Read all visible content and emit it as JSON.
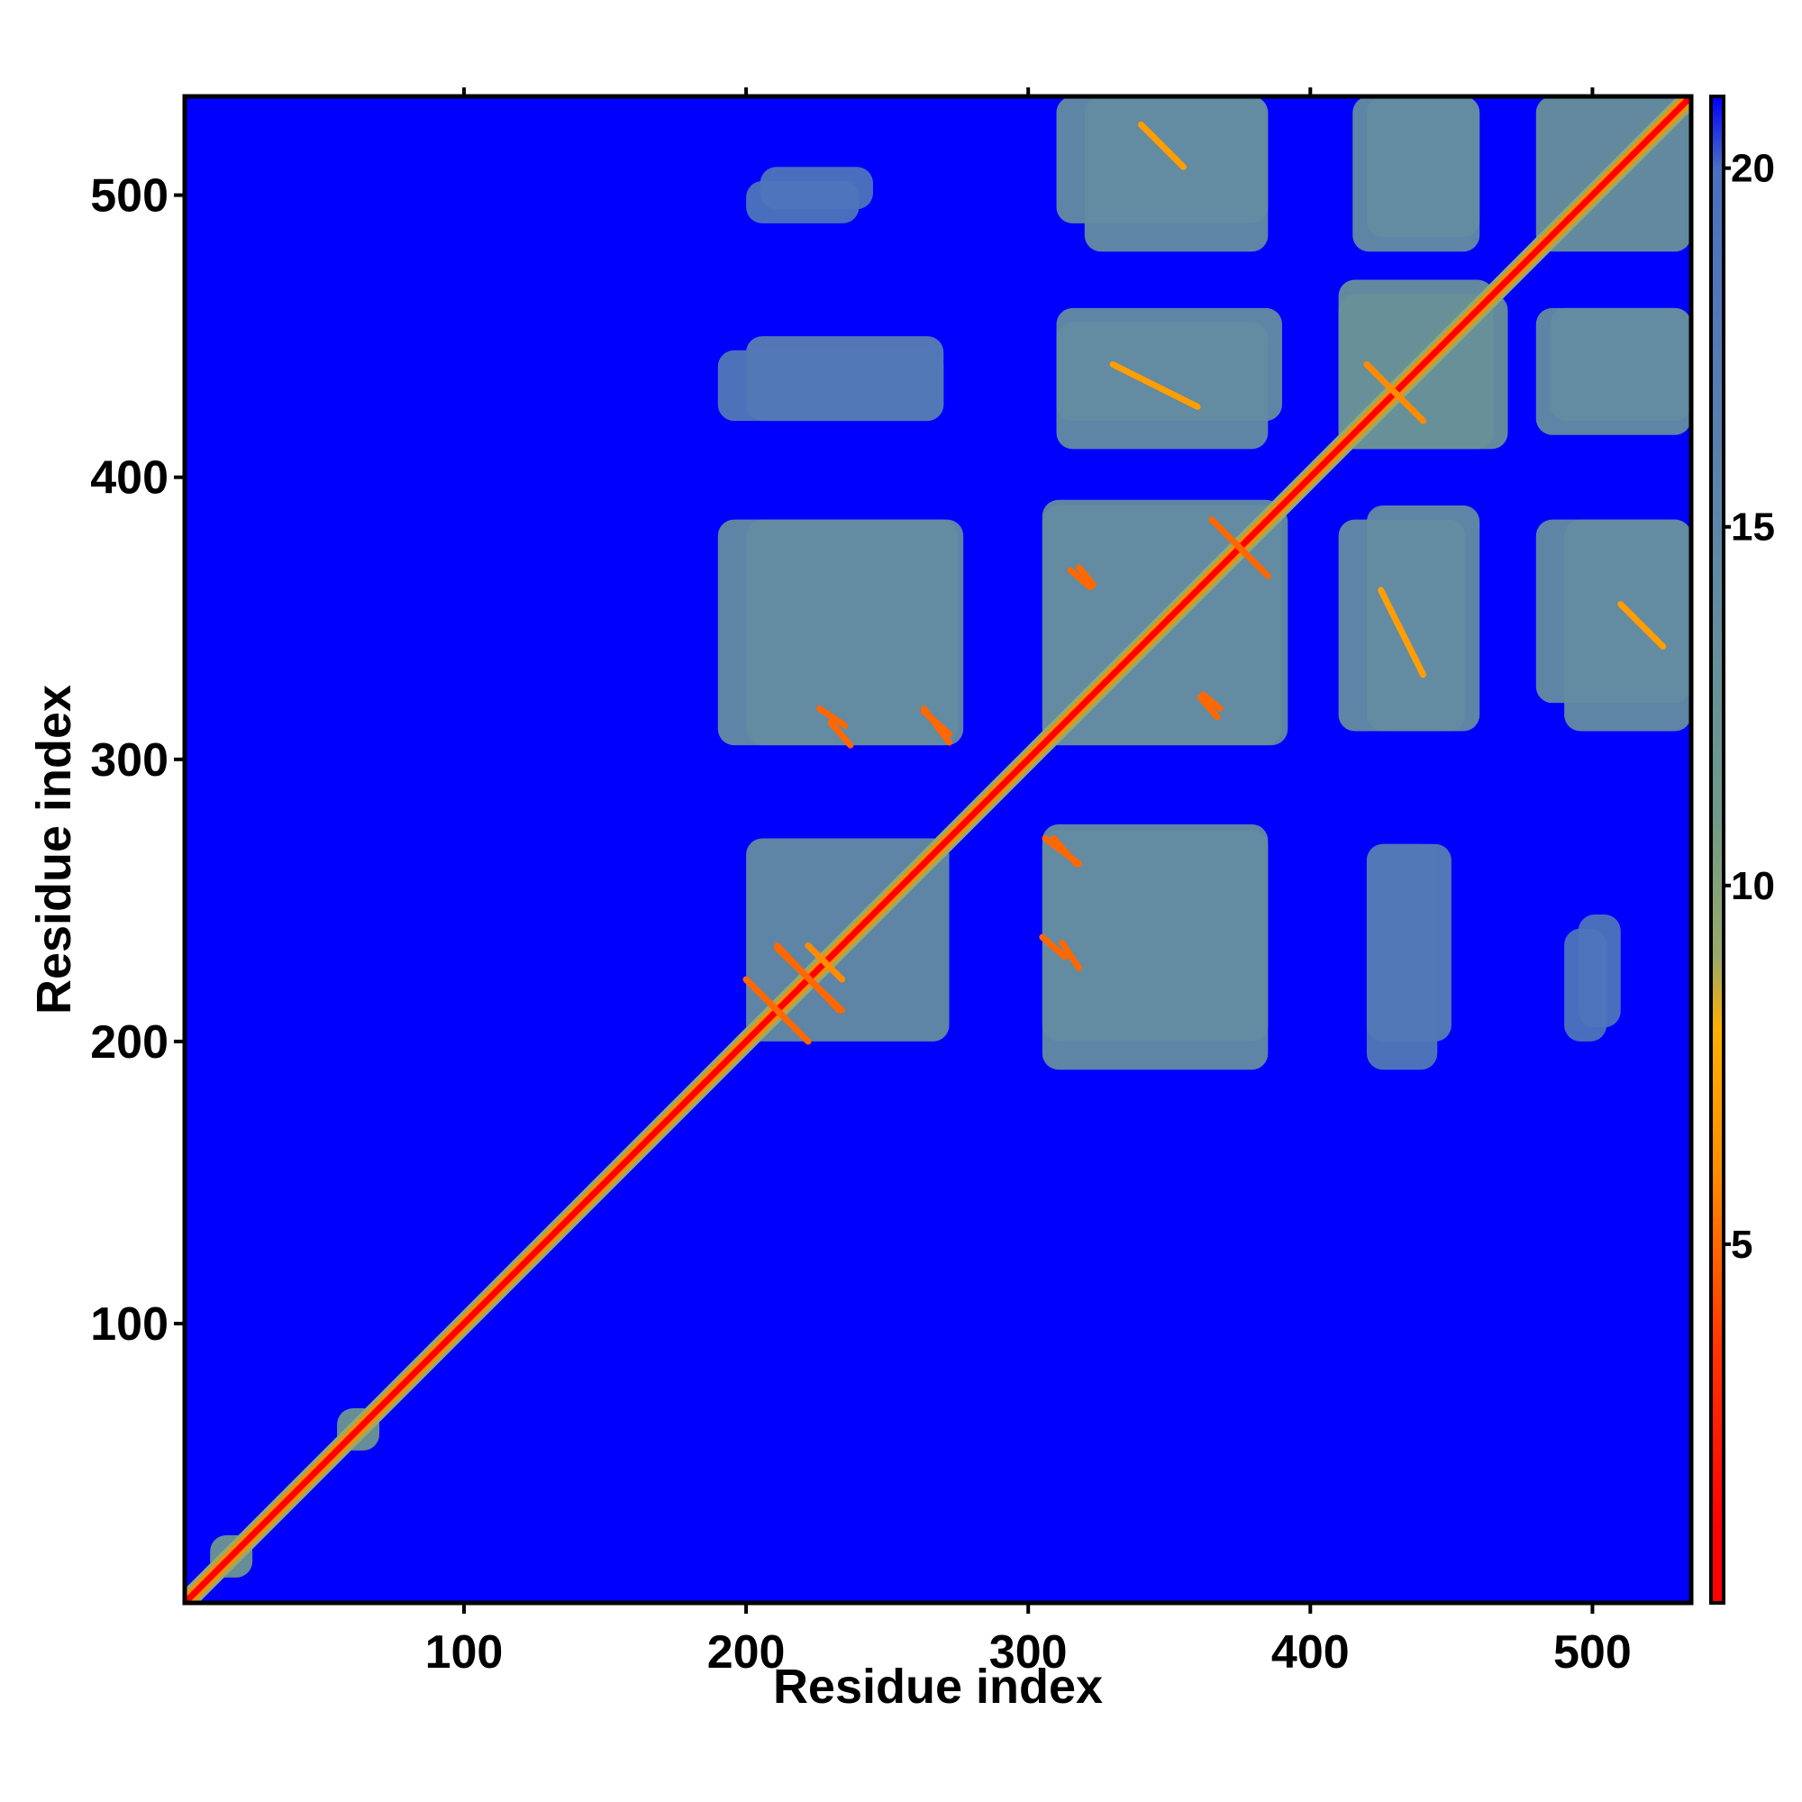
{
  "chart_data": {
    "type": "heatmap",
    "title": "",
    "xlabel": "Residue index",
    "ylabel": "Residue index",
    "xlim": [
      1,
      535
    ],
    "ylim": [
      1,
      535
    ],
    "x_ticks": [
      100,
      200,
      300,
      400,
      500
    ],
    "y_ticks": [
      100,
      200,
      300,
      400,
      500
    ],
    "colorbar": {
      "range": [
        0,
        21
      ],
      "ticks": [
        5,
        10,
        15,
        20
      ],
      "stops": [
        {
          "value": 1,
          "color": "#ff0000"
        },
        {
          "value": 3.5,
          "color": "#ff3300"
        },
        {
          "value": 6,
          "color": "#ff8c00"
        },
        {
          "value": 8,
          "color": "#ffb000"
        },
        {
          "value": 9,
          "color": "#9aa96a"
        },
        {
          "value": 11,
          "color": "#6f9a8a"
        },
        {
          "value": 15,
          "color": "#5f86a8"
        },
        {
          "value": 20,
          "color": "#4a6fc0"
        },
        {
          "value": 21,
          "color": "#0000ff"
        }
      ]
    },
    "background": {
      "value": 21,
      "color": "#0000ff"
    },
    "diagonal": {
      "from": 1,
      "to": 535,
      "value": 1
    },
    "contact_blocks": [
      {
        "x": [
          200,
          272
        ],
        "y": [
          200,
          272
        ],
        "value": 14
      },
      {
        "x": [
          305,
          385
        ],
        "y": [
          190,
          275
        ],
        "value": 14
      },
      {
        "x": [
          200,
          277
        ],
        "y": [
          305,
          385
        ],
        "value": 14
      },
      {
        "x": [
          305,
          392
        ],
        "y": [
          305,
          390
        ],
        "value": 14
      },
      {
        "x": [
          410,
          455
        ],
        "y": [
          310,
          385
        ],
        "value": 14
      },
      {
        "x": [
          490,
          535
        ],
        "y": [
          310,
          385
        ],
        "value": 14
      },
      {
        "x": [
          310,
          390
        ],
        "y": [
          420,
          460
        ],
        "value": 14
      },
      {
        "x": [
          200,
          270
        ],
        "y": [
          420,
          450
        ],
        "value": 17
      },
      {
        "x": [
          410,
          470
        ],
        "y": [
          410,
          465
        ],
        "value": 13
      },
      {
        "x": [
          485,
          535
        ],
        "y": [
          420,
          460
        ],
        "value": 14
      },
      {
        "x": [
          320,
          385
        ],
        "y": [
          480,
          535
        ],
        "value": 14
      },
      {
        "x": [
          415,
          460
        ],
        "y": [
          480,
          535
        ],
        "value": 14
      },
      {
        "x": [
          480,
          535
        ],
        "y": [
          480,
          535
        ],
        "value": 13
      },
      {
        "x": [
          420,
          445
        ],
        "y": [
          190,
          270
        ],
        "value": 18
      },
      {
        "x": [
          490,
          505
        ],
        "y": [
          200,
          240
        ],
        "value": 19
      },
      {
        "x": [
          205,
          245
        ],
        "y": [
          495,
          510
        ],
        "value": 19
      },
      {
        "x": [
          55,
          70
        ],
        "y": [
          55,
          70
        ],
        "value": 12
      },
      {
        "x": [
          10,
          25
        ],
        "y": [
          10,
          25
        ],
        "value": 12
      }
    ],
    "contact_lines": [
      {
        "from": [
          200,
          222
        ],
        "to": [
          222,
          200
        ],
        "value": 5
      },
      {
        "from": [
          211,
          234
        ],
        "to": [
          233,
          211
        ],
        "value": 5
      },
      {
        "from": [
          222,
          234
        ],
        "to": [
          234,
          222
        ],
        "value": 6
      },
      {
        "from": [
          226,
          318
        ],
        "to": [
          235,
          312
        ],
        "value": 5
      },
      {
        "from": [
          263,
          317
        ],
        "to": [
          272,
          309
        ],
        "value": 5
      },
      {
        "from": [
          306,
          272
        ],
        "to": [
          318,
          263
        ],
        "value": 5
      },
      {
        "from": [
          305,
          237
        ],
        "to": [
          313,
          230
        ],
        "value": 5
      },
      {
        "from": [
          365,
          385
        ],
        "to": [
          382,
          368
        ],
        "value": 5
      },
      {
        "from": [
          315,
          367
        ],
        "to": [
          322,
          361
        ],
        "value": 5
      },
      {
        "from": [
          362,
          323
        ],
        "to": [
          368,
          318
        ],
        "value": 5
      },
      {
        "from": [
          425,
          360
        ],
        "to": [
          440,
          330
        ],
        "value": 7
      },
      {
        "from": [
          420,
          440
        ],
        "to": [
          440,
          420
        ],
        "value": 6
      },
      {
        "from": [
          510,
          355
        ],
        "to": [
          525,
          340
        ],
        "value": 7
      }
    ]
  }
}
